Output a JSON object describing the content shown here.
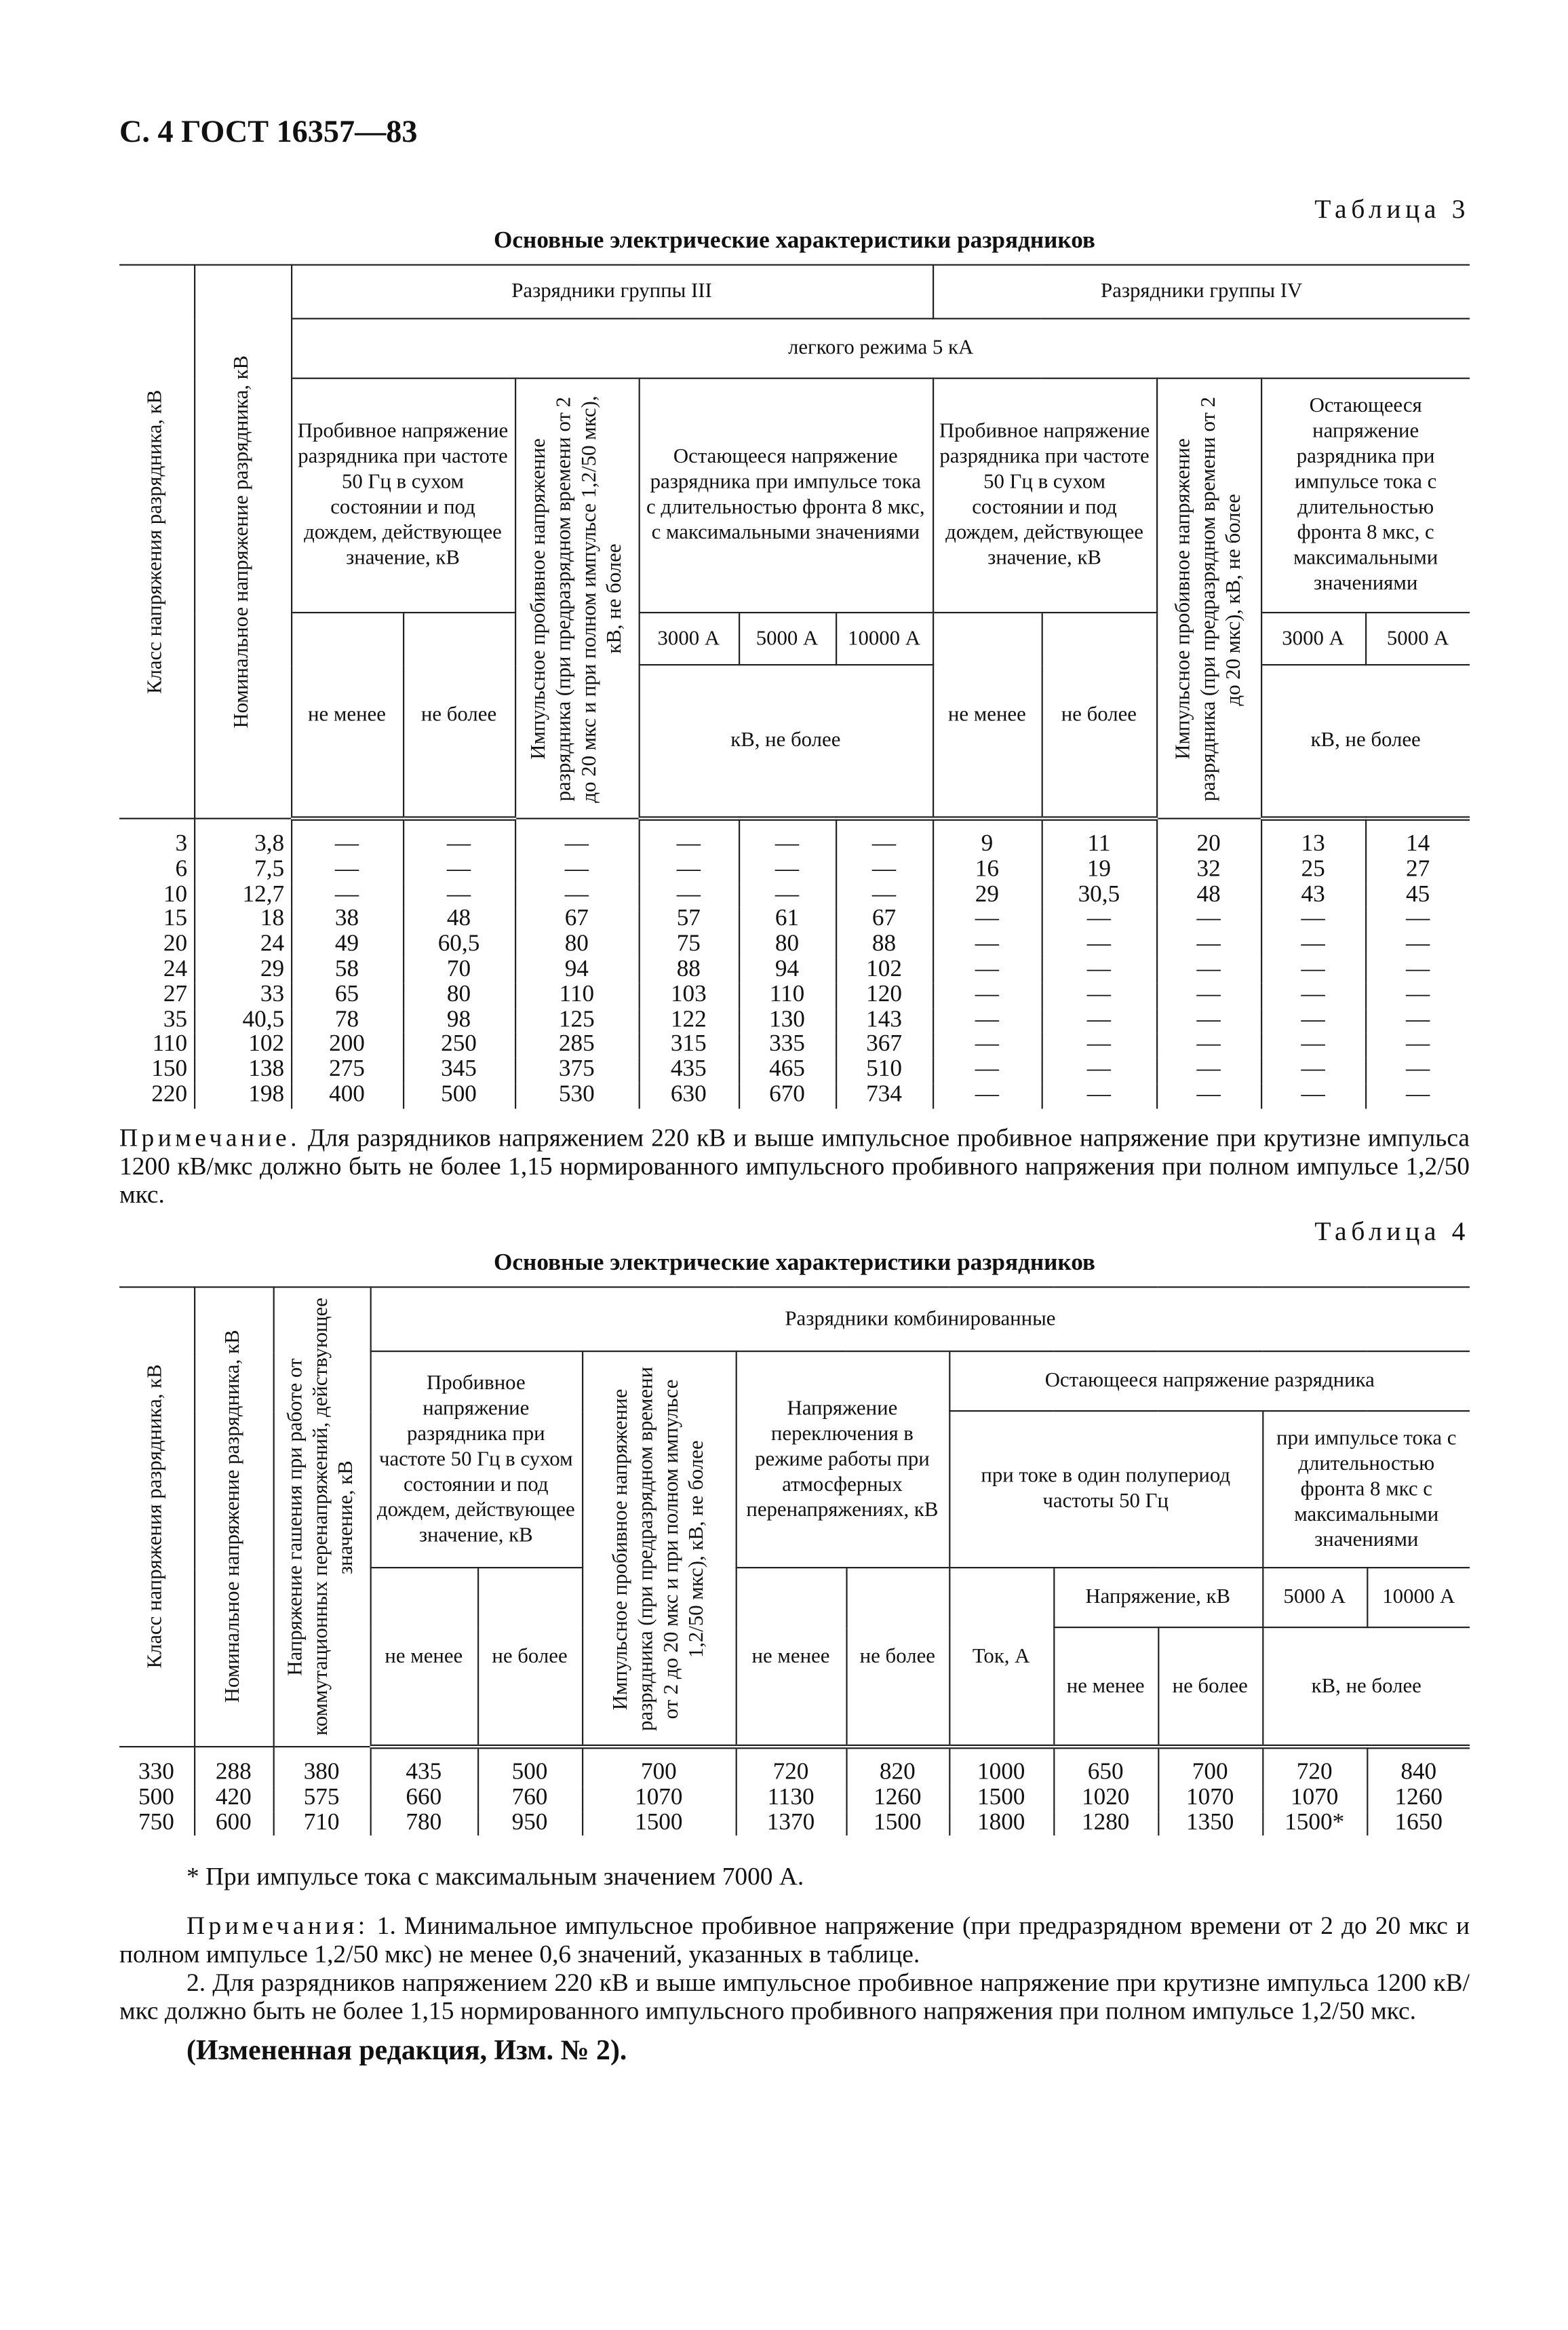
{
  "header": {
    "title": "С. 4 ГОСТ 16357—83"
  },
  "table3": {
    "label": "Таблица 3",
    "title": "Основные электрические характеристики разрядников",
    "headers": {
      "class": "Класс напряжения разрядника, кВ",
      "nominal": "Номинальное напряжение разрядника, кВ",
      "group3": "Разрядники группы III",
      "group4": "Разрядники группы IV",
      "mode": "легкого режима 5 кА",
      "g3_breakdown": "Пробивное напряжение разрядника при частоте 50 Гц в сухом состоянии и под дождем, действующее значение, кВ",
      "g3_impulse": "Импульсное пробивное напряжение разрядника (при предразрядном времени от 2 до 20 мкс и при полном импульсе 1,2/50 мкс), кВ, не более",
      "g3_residual": "Остающееся напряжение разрядника при импульсе тока с длительностью фронта 8 мкс, с максимальными значениями",
      "g4_breakdown": "Пробивное напряжение разрядника при частоте 50 Гц в сухом состоянии и под дождем, действующее значение, кВ",
      "g4_impulse": "Импульсное пробивное напряжение разрядника (при предразрядном времени от 2 до 20 мкс), кВ, не более",
      "g4_residual": "Остающееся напряжение разрядника при импульсе тока с длительностью фронта 8 мкс, с максимальными значениями",
      "min": "не менее",
      "max": "не более",
      "i3000": "3000 А",
      "i5000": "5000 А",
      "i10000": "10000 А",
      "kv_max": "кВ, не более"
    },
    "rows": [
      [
        "3",
        "3,8",
        "—",
        "—",
        "—",
        "—",
        "—",
        "—",
        "9",
        "11",
        "20",
        "13",
        "14"
      ],
      [
        "6",
        "7,5",
        "—",
        "—",
        "—",
        "—",
        "—",
        "—",
        "16",
        "19",
        "32",
        "25",
        "27"
      ],
      [
        "10",
        "12,7",
        "—",
        "—",
        "—",
        "—",
        "—",
        "—",
        "29",
        "30,5",
        "48",
        "43",
        "45"
      ],
      [
        "15",
        "18",
        "38",
        "48",
        "67",
        "57",
        "61",
        "67",
        "—",
        "—",
        "—",
        "—",
        "—"
      ],
      [
        "20",
        "24",
        "49",
        "60,5",
        "80",
        "75",
        "80",
        "88",
        "—",
        "—",
        "—",
        "—",
        "—"
      ],
      [
        "24",
        "29",
        "58",
        "70",
        "94",
        "88",
        "94",
        "102",
        "—",
        "—",
        "—",
        "—",
        "—"
      ],
      [
        "27",
        "33",
        "65",
        "80",
        "110",
        "103",
        "110",
        "120",
        "—",
        "—",
        "—",
        "—",
        "—"
      ],
      [
        "35",
        "40,5",
        "78",
        "98",
        "125",
        "122",
        "130",
        "143",
        "—",
        "—",
        "—",
        "—",
        "—"
      ],
      [
        "110",
        "102",
        "200",
        "250",
        "285",
        "315",
        "335",
        "367",
        "—",
        "—",
        "—",
        "—",
        "—"
      ],
      [
        "150",
        "138",
        "275",
        "345",
        "375",
        "435",
        "465",
        "510",
        "—",
        "—",
        "—",
        "—",
        "—"
      ],
      [
        "220",
        "198",
        "400",
        "500",
        "530",
        "630",
        "670",
        "734",
        "—",
        "—",
        "—",
        "—",
        "—"
      ]
    ],
    "note": {
      "label": "Примечание.",
      "text": "Для разрядников напряжением 220 кВ и выше импульсное пробивное напряжение при крутизне импульса 1200 кВ/мкс должно быть не более 1,15 нормированного импульсного пробивного напряжения при полном импульсе 1,2/50 мкс."
    }
  },
  "table4": {
    "label": "Таблица 4",
    "title": "Основные электрические характеристики разрядников",
    "headers": {
      "class": "Класс напряжения разрядника, кВ",
      "nominal": "Номинальное напряжение разрядника, кВ",
      "quench": "Напряжение гашения при работе от коммутационных перенапряжений, действующее значение, кВ",
      "group": "Разрядники комбинированные",
      "breakdown": "Пробивное напряжение разрядника при частоте 50 Гц в сухом состоянии и под дождем, действующее значение, кВ",
      "impulse": "Импульсное пробивное напряжение разрядника (при предразрядном времени от 2 до 20 мкс и при полном импульсе 1,2/50 мкс), кВ, не более",
      "switching": "Напряжение переключения в режиме работы при атмосферных перенапряжениях, кВ",
      "residual": "Остающееся напряжение разрядника",
      "half_period": "при токе в один полупериод частоты 50 Гц",
      "impulse_current": "при импульсе тока с длительностью фронта 8 мкс с максимальными значениями",
      "min": "не менее",
      "max": "не более",
      "current": "Ток, А",
      "voltage": "Напряжение, кВ",
      "i5000": "5000 А",
      "i10000": "10000 А",
      "kv_max": "кВ, не более"
    },
    "rows": [
      [
        "330",
        "288",
        "380",
        "435",
        "500",
        "700",
        "720",
        "820",
        "1000",
        "650",
        "700",
        "720",
        "840"
      ],
      [
        "500",
        "420",
        "575",
        "660",
        "760",
        "1070",
        "1130",
        "1260",
        "1500",
        "1020",
        "1070",
        "1070",
        "1260"
      ],
      [
        "750",
        "600",
        "710",
        "780",
        "950",
        "1500",
        "1370",
        "1500",
        "1800",
        "1280",
        "1350",
        "1500*",
        "1650"
      ]
    ],
    "footnote": "* При импульсе тока с максимальным значением 7000 А.",
    "notes": {
      "label": "Примечания:",
      "items": [
        "1. Минимальное импульсное пробивное напряжение (при предразрядном времени от 2 до 20 мкс и полном импульсе 1,2/50 мкс) не менее 0,6 значений, указанных в таблице.",
        "2. Для разрядников напряжением 220 кВ и выше импульсное пробивное напряжение при крутизне импульса 1200 кВ/мкс должно быть не более 1,15 нормированного импульсного пробивного напряжения при полном импульсе 1,2/50 мкс."
      ]
    },
    "amendment": "(Измененная редакция, Изм. № 2)."
  }
}
